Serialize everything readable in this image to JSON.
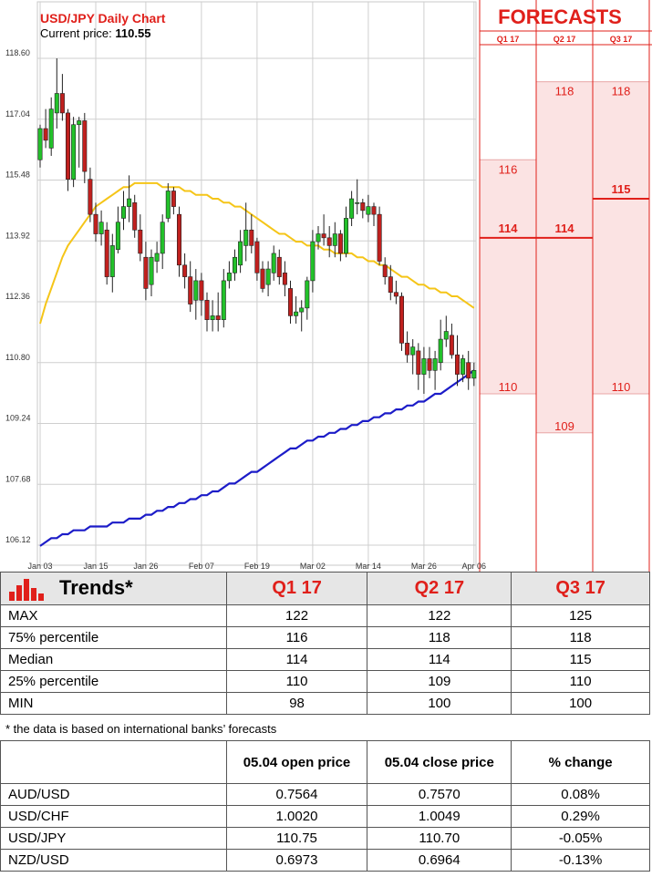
{
  "chart_data": {
    "type": "candlestick",
    "title": "USD/JPY Daily Chart",
    "current_price_label": "Current price:",
    "current_price_value": "110.55",
    "y_ticks": [
      "118.60",
      "117.04",
      "115.48",
      "113.92",
      "112.36",
      "110.80",
      "109.24",
      "107.68",
      "106.12"
    ],
    "y_tick_values": [
      118.6,
      117.04,
      115.48,
      113.92,
      112.36,
      110.8,
      109.24,
      107.68,
      106.12
    ],
    "ylim": [
      105.7,
      119.7
    ],
    "x_ticks": [
      "Jan 03",
      "Jan 15",
      "Jan 26",
      "Feb 07",
      "Feb 19",
      "Mar 02",
      "Mar 14",
      "Mar 26",
      "Apr 06"
    ],
    "x_tick_index": [
      0,
      10,
      19,
      29,
      39,
      49,
      59,
      69,
      78
    ],
    "grid": true,
    "candles": [
      {
        "o": 116.0,
        "h": 116.9,
        "l": 115.8,
        "c": 116.8
      },
      {
        "o": 116.8,
        "h": 117.3,
        "l": 116.3,
        "c": 116.5
      },
      {
        "o": 116.3,
        "h": 117.6,
        "l": 116.1,
        "c": 117.3
      },
      {
        "o": 117.2,
        "h": 118.6,
        "l": 116.8,
        "c": 117.7
      },
      {
        "o": 117.7,
        "h": 118.2,
        "l": 117.0,
        "c": 117.2
      },
      {
        "o": 117.2,
        "h": 117.3,
        "l": 115.2,
        "c": 115.5
      },
      {
        "o": 115.5,
        "h": 117.1,
        "l": 115.3,
        "c": 116.9
      },
      {
        "o": 116.9,
        "h": 117.1,
        "l": 115.8,
        "c": 117.0
      },
      {
        "o": 117.0,
        "h": 117.2,
        "l": 115.4,
        "c": 115.7
      },
      {
        "o": 115.5,
        "h": 115.8,
        "l": 114.4,
        "c": 114.6
      },
      {
        "o": 114.6,
        "h": 114.9,
        "l": 113.9,
        "c": 114.1
      },
      {
        "o": 114.1,
        "h": 114.7,
        "l": 113.8,
        "c": 114.4
      },
      {
        "o": 114.2,
        "h": 114.4,
        "l": 112.8,
        "c": 113.0
      },
      {
        "o": 113.0,
        "h": 114.1,
        "l": 112.6,
        "c": 113.8
      },
      {
        "o": 113.7,
        "h": 114.8,
        "l": 113.6,
        "c": 114.4
      },
      {
        "o": 114.5,
        "h": 115.2,
        "l": 114.2,
        "c": 114.8
      },
      {
        "o": 114.8,
        "h": 115.6,
        "l": 114.4,
        "c": 115.0
      },
      {
        "o": 114.9,
        "h": 115.1,
        "l": 114.0,
        "c": 114.2
      },
      {
        "o": 114.2,
        "h": 114.6,
        "l": 113.4,
        "c": 113.6
      },
      {
        "o": 113.5,
        "h": 113.9,
        "l": 112.4,
        "c": 112.7
      },
      {
        "o": 112.8,
        "h": 113.7,
        "l": 112.5,
        "c": 113.5
      },
      {
        "o": 113.4,
        "h": 113.9,
        "l": 113.1,
        "c": 113.6
      },
      {
        "o": 113.6,
        "h": 114.6,
        "l": 113.2,
        "c": 114.4
      },
      {
        "o": 114.5,
        "h": 115.4,
        "l": 114.4,
        "c": 115.2
      },
      {
        "o": 115.2,
        "h": 115.3,
        "l": 114.6,
        "c": 114.8
      },
      {
        "o": 114.6,
        "h": 114.8,
        "l": 113.0,
        "c": 113.3
      },
      {
        "o": 113.3,
        "h": 113.6,
        "l": 112.7,
        "c": 113.0
      },
      {
        "o": 113.0,
        "h": 113.4,
        "l": 112.1,
        "c": 112.3
      },
      {
        "o": 112.4,
        "h": 113.2,
        "l": 111.9,
        "c": 112.9
      },
      {
        "o": 112.9,
        "h": 113.1,
        "l": 112.0,
        "c": 112.4
      },
      {
        "o": 112.4,
        "h": 112.6,
        "l": 111.6,
        "c": 111.9
      },
      {
        "o": 111.9,
        "h": 112.4,
        "l": 111.6,
        "c": 112.0
      },
      {
        "o": 112.0,
        "h": 112.6,
        "l": 111.6,
        "c": 111.9
      },
      {
        "o": 111.9,
        "h": 113.2,
        "l": 111.7,
        "c": 112.9
      },
      {
        "o": 112.9,
        "h": 113.4,
        "l": 112.7,
        "c": 113.1
      },
      {
        "o": 113.1,
        "h": 113.7,
        "l": 112.9,
        "c": 113.5
      },
      {
        "o": 113.3,
        "h": 114.2,
        "l": 113.1,
        "c": 113.9
      },
      {
        "o": 113.8,
        "h": 114.9,
        "l": 113.4,
        "c": 114.2
      },
      {
        "o": 114.2,
        "h": 114.6,
        "l": 113.6,
        "c": 113.8
      },
      {
        "o": 113.9,
        "h": 114.0,
        "l": 112.9,
        "c": 113.1
      },
      {
        "o": 113.2,
        "h": 113.4,
        "l": 112.6,
        "c": 112.7
      },
      {
        "o": 112.8,
        "h": 113.4,
        "l": 112.5,
        "c": 113.2
      },
      {
        "o": 113.1,
        "h": 113.8,
        "l": 112.9,
        "c": 113.6
      },
      {
        "o": 113.5,
        "h": 113.7,
        "l": 112.8,
        "c": 113.0
      },
      {
        "o": 113.1,
        "h": 113.4,
        "l": 112.5,
        "c": 112.8
      },
      {
        "o": 112.7,
        "h": 112.9,
        "l": 111.8,
        "c": 112.0
      },
      {
        "o": 112.0,
        "h": 112.5,
        "l": 111.8,
        "c": 112.1
      },
      {
        "o": 112.1,
        "h": 112.4,
        "l": 111.6,
        "c": 112.2
      },
      {
        "o": 112.2,
        "h": 113.0,
        "l": 111.9,
        "c": 112.9
      },
      {
        "o": 112.9,
        "h": 114.2,
        "l": 112.6,
        "c": 113.9
      },
      {
        "o": 113.9,
        "h": 114.3,
        "l": 113.7,
        "c": 114.1
      },
      {
        "o": 114.1,
        "h": 114.6,
        "l": 113.8,
        "c": 114.0
      },
      {
        "o": 114.0,
        "h": 114.3,
        "l": 113.5,
        "c": 113.8
      },
      {
        "o": 113.8,
        "h": 114.4,
        "l": 113.5,
        "c": 114.1
      },
      {
        "o": 114.1,
        "h": 114.2,
        "l": 113.4,
        "c": 113.6
      },
      {
        "o": 113.6,
        "h": 114.8,
        "l": 113.5,
        "c": 114.5
      },
      {
        "o": 114.5,
        "h": 115.2,
        "l": 114.3,
        "c": 115.0
      },
      {
        "o": 114.9,
        "h": 115.5,
        "l": 114.6,
        "c": 114.9
      },
      {
        "o": 114.9,
        "h": 115.0,
        "l": 114.5,
        "c": 114.7
      },
      {
        "o": 114.6,
        "h": 115.1,
        "l": 114.4,
        "c": 114.8
      },
      {
        "o": 114.8,
        "h": 114.9,
        "l": 114.3,
        "c": 114.6
      },
      {
        "o": 114.6,
        "h": 114.8,
        "l": 113.3,
        "c": 113.4
      },
      {
        "o": 113.3,
        "h": 113.5,
        "l": 112.8,
        "c": 113.0
      },
      {
        "o": 113.0,
        "h": 113.3,
        "l": 112.4,
        "c": 112.6
      },
      {
        "o": 112.6,
        "h": 112.9,
        "l": 112.3,
        "c": 112.5
      },
      {
        "o": 112.5,
        "h": 112.6,
        "l": 111.1,
        "c": 111.3
      },
      {
        "o": 111.3,
        "h": 111.6,
        "l": 110.8,
        "c": 111.0
      },
      {
        "o": 111.0,
        "h": 111.4,
        "l": 110.5,
        "c": 111.2
      },
      {
        "o": 111.1,
        "h": 111.3,
        "l": 110.1,
        "c": 110.5
      },
      {
        "o": 110.5,
        "h": 111.2,
        "l": 110.0,
        "c": 110.9
      },
      {
        "o": 110.9,
        "h": 111.2,
        "l": 110.4,
        "c": 110.6
      },
      {
        "o": 110.6,
        "h": 111.1,
        "l": 110.1,
        "c": 110.9
      },
      {
        "o": 110.8,
        "h": 111.9,
        "l": 110.6,
        "c": 111.4
      },
      {
        "o": 111.4,
        "h": 112.0,
        "l": 111.2,
        "c": 111.6
      },
      {
        "o": 111.5,
        "h": 111.8,
        "l": 110.9,
        "c": 111.0
      },
      {
        "o": 111.0,
        "h": 111.5,
        "l": 110.2,
        "c": 110.5
      },
      {
        "o": 110.5,
        "h": 111.0,
        "l": 110.3,
        "c": 110.9
      },
      {
        "o": 110.8,
        "h": 111.1,
        "l": 110.1,
        "c": 110.4
      },
      {
        "o": 110.4,
        "h": 110.8,
        "l": 110.2,
        "c": 110.6
      }
    ],
    "ma_short": [
      111.8,
      112.3,
      112.7,
      113.1,
      113.5,
      113.8,
      114.0,
      114.2,
      114.4,
      114.6,
      114.8,
      114.9,
      115.0,
      115.1,
      115.2,
      115.3,
      115.3,
      115.4,
      115.4,
      115.4,
      115.4,
      115.4,
      115.3,
      115.3,
      115.3,
      115.3,
      115.2,
      115.2,
      115.1,
      115.1,
      115.1,
      115.0,
      115.0,
      114.9,
      114.9,
      114.8,
      114.8,
      114.7,
      114.6,
      114.5,
      114.4,
      114.3,
      114.2,
      114.1,
      114.1,
      114.0,
      113.9,
      113.9,
      113.8,
      113.8,
      113.8,
      113.7,
      113.7,
      113.6,
      113.6,
      113.6,
      113.6,
      113.5,
      113.5,
      113.4,
      113.4,
      113.3,
      113.3,
      113.2,
      113.1,
      113.0,
      113.0,
      112.9,
      112.8,
      112.8,
      112.7,
      112.7,
      112.6,
      112.6,
      112.5,
      112.5,
      112.4,
      112.3,
      112.2
    ],
    "ma_long": [
      106.1,
      106.2,
      106.3,
      106.3,
      106.4,
      106.4,
      106.5,
      106.5,
      106.5,
      106.6,
      106.6,
      106.6,
      106.6,
      106.7,
      106.7,
      106.7,
      106.8,
      106.8,
      106.8,
      106.9,
      106.9,
      107.0,
      107.0,
      107.1,
      107.1,
      107.2,
      107.2,
      107.3,
      107.3,
      107.4,
      107.4,
      107.5,
      107.5,
      107.6,
      107.7,
      107.7,
      107.8,
      107.9,
      108.0,
      108.0,
      108.1,
      108.2,
      108.3,
      108.4,
      108.5,
      108.6,
      108.6,
      108.7,
      108.8,
      108.8,
      108.9,
      108.9,
      109.0,
      109.0,
      109.1,
      109.1,
      109.2,
      109.2,
      109.3,
      109.3,
      109.4,
      109.4,
      109.5,
      109.5,
      109.6,
      109.6,
      109.7,
      109.7,
      109.8,
      109.8,
      109.9,
      110.0,
      110.0,
      110.1,
      110.2,
      110.3,
      110.4,
      110.5,
      110.6
    ]
  },
  "forecasts": {
    "title": "FORECASTS",
    "columns": [
      {
        "label": "Q1 17",
        "high": "116",
        "median": "114",
        "low": "110",
        "high_v": 116,
        "median_v": 114,
        "low_v": 110
      },
      {
        "label": "Q2 17",
        "high": "118",
        "median": "114",
        "low": "109",
        "high_v": 118,
        "median_v": 114,
        "low_v": 109
      },
      {
        "label": "Q3 17",
        "high": "118",
        "median": "115",
        "low": "110",
        "high_v": 118,
        "median_v": 115,
        "low_v": 110
      }
    ]
  },
  "trends": {
    "title": "Trends*",
    "headers": [
      "Q1 17",
      "Q2 17",
      "Q3 17"
    ],
    "rows": [
      {
        "label": "MAX",
        "values": [
          "122",
          "122",
          "125"
        ]
      },
      {
        "label": "75% percentile",
        "values": [
          "116",
          "118",
          "118"
        ]
      },
      {
        "label": "Median",
        "values": [
          "114",
          "114",
          "115"
        ]
      },
      {
        "label": "25% percentile",
        "values": [
          "110",
          "109",
          "110"
        ]
      },
      {
        "label": "MIN",
        "values": [
          "98",
          "100",
          "100"
        ]
      }
    ],
    "note": "* the data is based on international banks’ forecasts"
  },
  "fx": {
    "headers": [
      "",
      "05.04 open price",
      "05.04 close price",
      "% change"
    ],
    "rows": [
      {
        "pair": "AUD/USD",
        "open": "0.7564",
        "close": "0.7570",
        "change": "0.08%",
        "sign": "pos"
      },
      {
        "pair": "USD/CHF",
        "open": "1.0020",
        "close": "1.0049",
        "change": "0.29%",
        "sign": "pos"
      },
      {
        "pair": "USD/JPY",
        "open": "110.75",
        "close": "110.70",
        "change": "-0.05%",
        "sign": "neg"
      },
      {
        "pair": "NZD/USD",
        "open": "0.6973",
        "close": "0.6964",
        "change": "-0.13%",
        "sign": "neg"
      }
    ]
  },
  "colors": {
    "up": "#22c12a",
    "down": "#c0201e",
    "ma_short": "#f5c518",
    "ma_long": "#1c1cc8",
    "forecast_fill": "#fbe3e3",
    "accent": "#e0201b"
  }
}
